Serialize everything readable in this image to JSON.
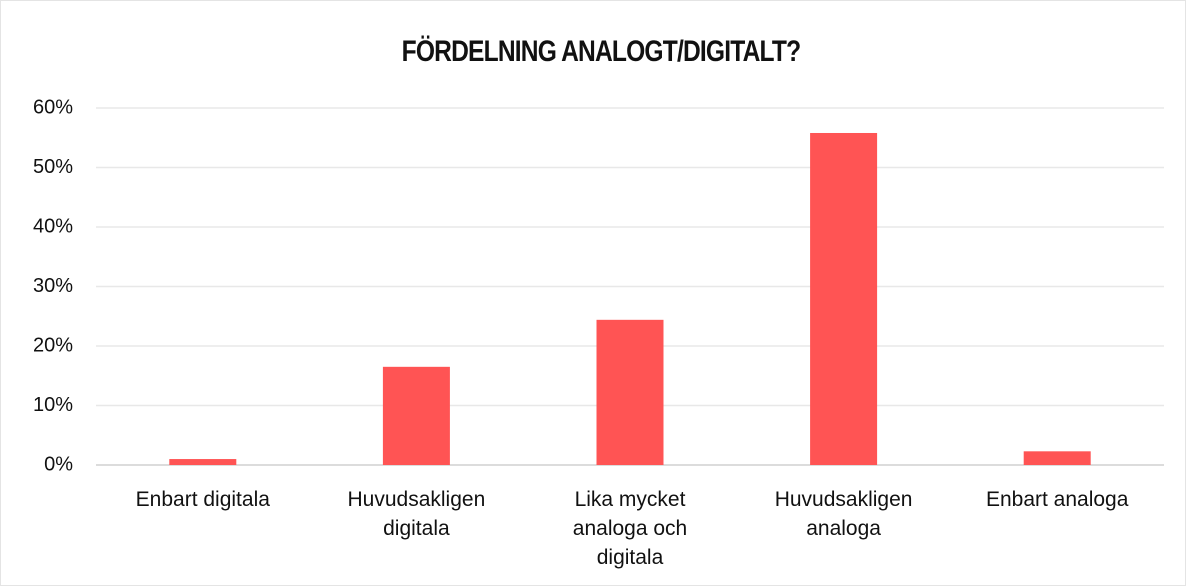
{
  "chart_data": {
    "type": "bar",
    "title": "FÖRDELNING ANALOGT/DIGITALT?",
    "categories": [
      "Enbart digitala",
      "Huvudsakligen digitala",
      "Lika mycket analoga och digitala",
      "Huvudsakligen analoga",
      "Enbart analoga"
    ],
    "values": [
      1,
      16.5,
      24.4,
      55.8,
      2.3
    ],
    "color": "#ff5454",
    "ylim": [
      0,
      60
    ],
    "yticks": [
      {
        "value": 0,
        "label": "0%"
      },
      {
        "value": 10,
        "label": "10%"
      },
      {
        "value": 20,
        "label": "20%"
      },
      {
        "value": 30,
        "label": "30%"
      },
      {
        "value": 40,
        "label": "40%"
      },
      {
        "value": 50,
        "label": "50%"
      },
      {
        "value": 60,
        "label": "60%"
      }
    ],
    "grid": true
  }
}
